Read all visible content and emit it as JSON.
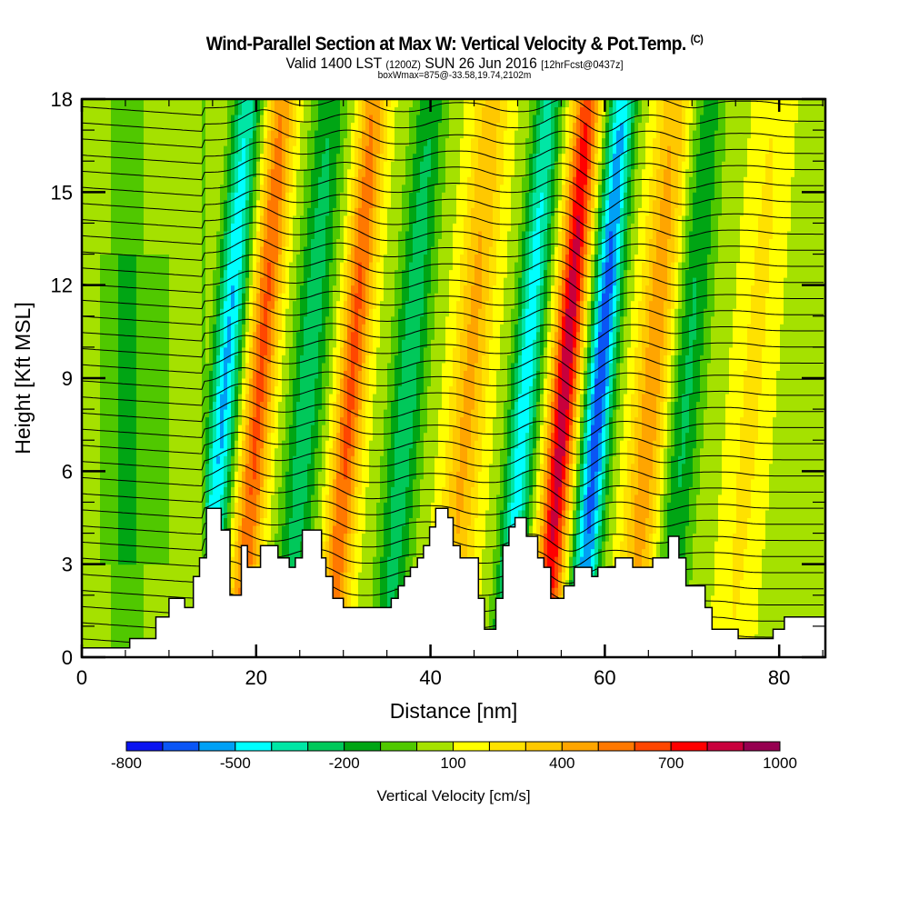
{
  "header": {
    "title": "Wind-Parallel Section at Max W: Vertical Velocity & Pot.Temp.",
    "copyright_mark": "(C)",
    "valid_prefix": "Valid 1400 LST",
    "valid_utc": "(1200Z)",
    "valid_date": "SUN 26 Jun 2016",
    "forecast_info": "[12hrFcst@0437z]",
    "box_info": "boxWmax=875@-33.58,19.74,2102m"
  },
  "chart_data": {
    "type": "heatmap",
    "title": "Wind-Parallel Section at Max W: Vertical Velocity & Pot.Temp.",
    "xlabel": "Distance [nm]",
    "ylabel": "Height [Kft MSL]",
    "xlim": [
      0,
      85.3
    ],
    "ylim": [
      0,
      18
    ],
    "x_ticks": [
      0,
      20,
      40,
      60,
      80
    ],
    "x_tick_labels": [
      "0",
      "20",
      "40",
      "60",
      "80"
    ],
    "x_minor_step": 5,
    "y_ticks": [
      0,
      3,
      6,
      9,
      12,
      15,
      18
    ],
    "y_tick_labels": [
      "0",
      "3",
      "6",
      "9",
      "12",
      "15",
      "18"
    ],
    "y_minor_step": 1,
    "colorbar": {
      "label": "Vertical Velocity [cm/s]",
      "min": -800,
      "max": 1000,
      "step": 100,
      "tick_values": [
        -800,
        -500,
        -200,
        100,
        400,
        700,
        1000
      ],
      "tick_labels": [
        "-800",
        "-500",
        "-200",
        "100",
        "400",
        "700",
        "1000"
      ],
      "colors": [
        "#0a14f0",
        "#0a55f5",
        "#00a0f5",
        "#00ffff",
        "#00e6a5",
        "#00c85a",
        "#00a514",
        "#50c800",
        "#a5e100",
        "#ffff00",
        "#ffe100",
        "#ffc800",
        "#ffa500",
        "#ff7800",
        "#ff4600",
        "#ff0000",
        "#c8003c",
        "#960050"
      ]
    },
    "field": "vertical_velocity_cm_s",
    "contours": "potential_temperature",
    "wave_cores": [
      {
        "x_nm": 16.5,
        "w_cm_s": -600,
        "sign": "down"
      },
      {
        "x_nm": 20.5,
        "w_cm_s": 550,
        "sign": "up"
      },
      {
        "x_nm": 26.0,
        "w_cm_s": -350,
        "sign": "down"
      },
      {
        "x_nm": 31.0,
        "w_cm_s": 550,
        "sign": "up"
      },
      {
        "x_nm": 37.5,
        "w_cm_s": -350,
        "sign": "down"
      },
      {
        "x_nm": 44.5,
        "w_cm_s": 350,
        "sign": "up"
      },
      {
        "x_nm": 51.0,
        "w_cm_s": -550,
        "sign": "down"
      },
      {
        "x_nm": 55.5,
        "w_cm_s": 800,
        "sign": "up"
      },
      {
        "x_nm": 59.5,
        "w_cm_s": -750,
        "sign": "down"
      },
      {
        "x_nm": 65.5,
        "w_cm_s": 400,
        "sign": "up"
      },
      {
        "x_nm": 69.5,
        "w_cm_s": -300,
        "sign": "down"
      },
      {
        "x_nm": 77.0,
        "w_cm_s": 150,
        "sign": "up"
      }
    ],
    "terrain_kft": [
      [
        0,
        0.3
      ],
      [
        5.5,
        0.3
      ],
      [
        5.5,
        0.6
      ],
      [
        8.5,
        0.6
      ],
      [
        8.5,
        1.3
      ],
      [
        10,
        1.3
      ],
      [
        10,
        1.9
      ],
      [
        11.8,
        1.9
      ],
      [
        11.8,
        1.6
      ],
      [
        12.8,
        1.6
      ],
      [
        12.8,
        2.6
      ],
      [
        13.5,
        2.6
      ],
      [
        13.5,
        3.2
      ],
      [
        14.3,
        3.2
      ],
      [
        14.3,
        4.8
      ],
      [
        16,
        4.8
      ],
      [
        16,
        4.1
      ],
      [
        17,
        4.1
      ],
      [
        17,
        2.0
      ],
      [
        18.3,
        2.0
      ],
      [
        18.3,
        3.6
      ],
      [
        19,
        3.6
      ],
      [
        19,
        2.9
      ],
      [
        20.5,
        2.9
      ],
      [
        20.5,
        3.6
      ],
      [
        22.5,
        3.6
      ],
      [
        22.5,
        3.2
      ],
      [
        23.8,
        3.2
      ],
      [
        23.8,
        2.9
      ],
      [
        24.5,
        2.9
      ],
      [
        24.5,
        3.2
      ],
      [
        25.3,
        3.2
      ],
      [
        25.3,
        4.1
      ],
      [
        27.5,
        4.1
      ],
      [
        27.5,
        3.2
      ],
      [
        28,
        3.2
      ],
      [
        28,
        2.6
      ],
      [
        28.8,
        2.6
      ],
      [
        28.8,
        1.9
      ],
      [
        30,
        1.9
      ],
      [
        30,
        1.6
      ],
      [
        35.5,
        1.6
      ],
      [
        35.5,
        1.9
      ],
      [
        36.3,
        1.9
      ],
      [
        36.3,
        2.3
      ],
      [
        37,
        2.3
      ],
      [
        37,
        2.6
      ],
      [
        37.7,
        2.6
      ],
      [
        37.7,
        2.9
      ],
      [
        38.5,
        2.9
      ],
      [
        38.5,
        3.2
      ],
      [
        39.2,
        3.2
      ],
      [
        39.2,
        3.6
      ],
      [
        39.9,
        3.6
      ],
      [
        39.9,
        4.2
      ],
      [
        40.6,
        4.2
      ],
      [
        40.6,
        4.8
      ],
      [
        42,
        4.8
      ],
      [
        42,
        4.5
      ],
      [
        42.6,
        4.5
      ],
      [
        42.6,
        3.6
      ],
      [
        43.4,
        3.6
      ],
      [
        43.4,
        3.2
      ],
      [
        45.5,
        3.2
      ],
      [
        45.5,
        1.9
      ],
      [
        46.2,
        1.9
      ],
      [
        46.2,
        0.9
      ],
      [
        47.5,
        0.9
      ],
      [
        47.5,
        1.9
      ],
      [
        48.3,
        1.9
      ],
      [
        48.3,
        3.6
      ],
      [
        49,
        3.6
      ],
      [
        49,
        4.2
      ],
      [
        49.7,
        4.2
      ],
      [
        49.7,
        4.5
      ],
      [
        51,
        4.5
      ],
      [
        51,
        3.9
      ],
      [
        52.3,
        3.9
      ],
      [
        52.3,
        3.2
      ],
      [
        53,
        3.2
      ],
      [
        53,
        2.9
      ],
      [
        53.8,
        2.9
      ],
      [
        53.8,
        1.9
      ],
      [
        55.3,
        1.9
      ],
      [
        55.3,
        2.3
      ],
      [
        56.5,
        2.3
      ],
      [
        56.5,
        2.9
      ],
      [
        58.5,
        2.9
      ],
      [
        58.5,
        2.6
      ],
      [
        59.2,
        2.6
      ],
      [
        59.2,
        2.9
      ],
      [
        61.2,
        2.9
      ],
      [
        61.2,
        3.2
      ],
      [
        63.2,
        3.2
      ],
      [
        63.2,
        2.9
      ],
      [
        65.5,
        2.9
      ],
      [
        65.5,
        3.2
      ],
      [
        67.3,
        3.2
      ],
      [
        67.3,
        3.9
      ],
      [
        68.5,
        3.9
      ],
      [
        68.5,
        3.2
      ],
      [
        69.3,
        3.2
      ],
      [
        69.3,
        2.3
      ],
      [
        71.5,
        2.3
      ],
      [
        71.5,
        1.6
      ],
      [
        72.3,
        1.6
      ],
      [
        72.3,
        0.9
      ],
      [
        75.3,
        0.9
      ],
      [
        75.3,
        0.6
      ],
      [
        79.3,
        0.6
      ],
      [
        79.3,
        0.9
      ],
      [
        80.6,
        0.9
      ],
      [
        80.6,
        1.3
      ],
      [
        85.3,
        1.3
      ]
    ]
  }
}
